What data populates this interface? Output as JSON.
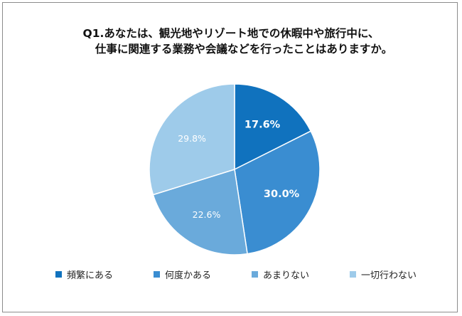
{
  "title_lines": [
    "Q1.あなたは、観光地やリゾート地での休暇中や旅行中に、",
    "仕事に関連する業務や会議などを行ったことはありますか。"
  ],
  "chart_data": {
    "type": "pie",
    "title": "Q1.あなたは、観光地やリゾート地での休暇中や旅行中に、仕事に関連する業務や会議などを行ったことはありますか。",
    "categories": [
      "頻繁にある",
      "何度かある",
      "あまりない",
      "一切行わない"
    ],
    "values": [
      17.6,
      30.0,
      22.6,
      29.8
    ],
    "labels": [
      "17.6%",
      "30.0%",
      "22.6%",
      "29.8%"
    ],
    "colors": [
      "#1072be",
      "#3a8dd1",
      "#6aaadb",
      "#9ecbea"
    ],
    "label_colors": [
      "#ffffff",
      "#ffffff",
      "#ffffff",
      "#ffffff"
    ],
    "legend_position": "bottom",
    "start": "12 o'clock",
    "direction": "clockwise"
  }
}
